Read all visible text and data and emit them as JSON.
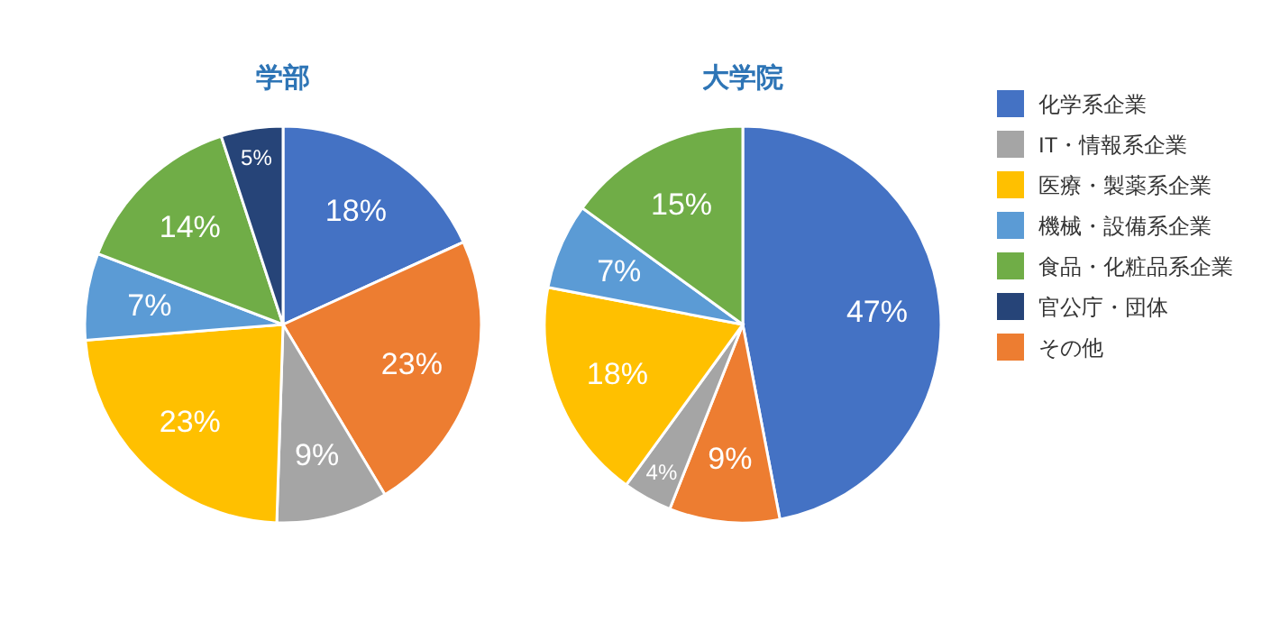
{
  "chart_data": [
    {
      "type": "pie",
      "title": "学部",
      "categories": [
        "化学系企業",
        "その他",
        "IT・情報系企業",
        "医療・製薬系企業",
        "機械・設備系企業",
        "食品・化粧品系企業",
        "官公庁・団体"
      ],
      "values": [
        18,
        23,
        9,
        23,
        7,
        14,
        5
      ],
      "value_labels": [
        "18%",
        "23%",
        "9%",
        "23%",
        "7%",
        "14%",
        "5%"
      ],
      "colors": [
        "#4472c4",
        "#ed7d31",
        "#a5a5a5",
        "#ffc000",
        "#5b9bd5",
        "#70ad47",
        "#264478"
      ],
      "legend": "right"
    },
    {
      "type": "pie",
      "title": "大学院",
      "categories": [
        null,
        null,
        null,
        null,
        null,
        null
      ],
      "values": [
        47,
        9,
        4,
        18,
        7,
        15
      ],
      "value_labels": [
        "47%",
        "9%",
        "4%",
        "18%",
        "7%",
        "15%"
      ],
      "colors": [
        "#4472c4",
        "#ed7d31",
        "#a5a5a5",
        "#ffc000",
        "#5b9bd5",
        "#70ad47"
      ]
    }
  ]
}
